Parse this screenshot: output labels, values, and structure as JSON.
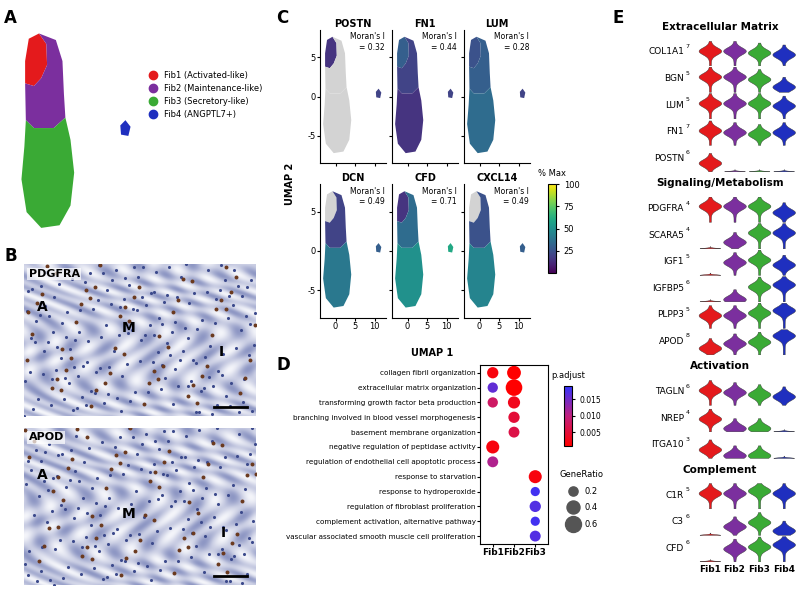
{
  "chart_data": [
    {
      "panel_label": "A",
      "type": "region",
      "tick_labels": false,
      "legend": "center left",
      "series": [
        {
          "name": "Fib1 (Activated-like)",
          "color": "#e41a1c",
          "x": [
            -2.7,
            -2.7,
            -2.2,
            -0.8,
            0.2,
            0.3,
            -0.5,
            -1.5
          ],
          "y": [
            3.8,
            5.5,
            7.2,
            7.6,
            6.8,
            5.2,
            4.2,
            3.6
          ]
        },
        {
          "name": "Fib2 (Maintenance-like)",
          "color": "#7b2f9e",
          "x": [
            -2.7,
            -1.5,
            -0.5,
            0.3,
            0.2,
            -0.8,
            1.5,
            2.4,
            2.6,
            2.8,
            1.2,
            -1.5,
            -2.6
          ],
          "y": [
            3.8,
            3.6,
            4.2,
            5.2,
            6.8,
            7.6,
            7.1,
            5.5,
            3.0,
            1.2,
            0.4,
            0.4,
            1.0
          ]
        },
        {
          "name": "Fib3 (Secretory-like)",
          "color": "#3aaa35",
          "x": [
            -2.6,
            -1.5,
            1.2,
            2.8,
            3.5,
            4.0,
            3.5,
            2.0,
            -0.5,
            -2.5,
            -3.2,
            -2.8
          ],
          "y": [
            1.0,
            0.4,
            0.4,
            1.2,
            -0.5,
            -3.0,
            -5.5,
            -7.0,
            -7.2,
            -6.0,
            -3.5,
            -1.0
          ]
        },
        {
          "name": "Fib4 (ANGPTL7+)",
          "color": "#1f2fbf",
          "x": [
            10.4,
            11.4,
            11.7,
            11.0,
            10.3
          ],
          "y": [
            -0.1,
            -0.2,
            0.5,
            1.0,
            0.6
          ]
        }
      ]
    },
    {
      "panel_label": "B",
      "type": "image",
      "panels": [
        {
          "title": "PDGFRA",
          "regions": [
            "A",
            "M",
            "I"
          ]
        },
        {
          "title": "APOD",
          "regions": [
            "A",
            "M",
            "I"
          ]
        }
      ]
    },
    {
      "panel_label": "C",
      "type": "feature",
      "xlabel": "UMAP 1",
      "ylabel": "UMAP 2",
      "xlim": [
        -4,
        13
      ],
      "ylim": [
        -8.5,
        8.5
      ],
      "xticks": [
        0,
        5,
        10
      ],
      "yticks": [
        -5,
        0,
        5
      ],
      "colorbar": {
        "label": "% Max",
        "range": [
          0,
          100
        ],
        "ticks": [
          25,
          50,
          75,
          100
        ]
      },
      "plots": [
        {
          "title": "POSTN",
          "annotation": "Moran's I\n= 0.32",
          "values": [
            15,
            null,
            null,
            20
          ]
        },
        {
          "title": "FN1",
          "annotation": "Moran's I\n= 0.44",
          "values": [
            30,
            20,
            15,
            20
          ]
        },
        {
          "title": "LUM",
          "annotation": "Moran's I\n= 0.28",
          "values": [
            25,
            30,
            35,
            20
          ]
        },
        {
          "title": "DCN",
          "annotation": "Moran's I\n= 0.49",
          "values": [
            null,
            20,
            40,
            30
          ]
        },
        {
          "title": "CFD",
          "annotation": "Moran's I\n= 0.71",
          "values": [
            15,
            35,
            50,
            60
          ]
        },
        {
          "title": "CXCL14",
          "annotation": "Moran's I\n= 0.49",
          "values": [
            null,
            25,
            45,
            30
          ]
        }
      ]
    },
    {
      "panel_label": "D",
      "type": "dot",
      "legend": "upper left",
      "categories": [
        "Fib1",
        "Fib2",
        "Fib3"
      ],
      "terms": [
        "collagen fibril organization",
        "extracellular matrix organization",
        "transforming growth factor beta production",
        "branching involved in blood vessel morphogenesis",
        "basement membrane organization",
        "negative regulation of peptidase activity",
        "regulation of endothelial cell apoptotic process",
        "response to starvation",
        "response to hydroperoxide",
        "regulation of fibroblast proliferation",
        "complement activation, alternative pathway",
        "vascular associated smooth muscle cell proliferation"
      ],
      "points": [
        {
          "term": "collagen fibril organization",
          "category": "Fib1",
          "p_adjust": 0.002,
          "gene_ratio": 0.3
        },
        {
          "term": "collagen fibril organization",
          "category": "Fib2",
          "p_adjust": 0.001,
          "gene_ratio": 0.45
        },
        {
          "term": "extracellular matrix organization",
          "category": "Fib1",
          "p_adjust": 0.016,
          "gene_ratio": 0.25
        },
        {
          "term": "extracellular matrix organization",
          "category": "Fib2",
          "p_adjust": 0.001,
          "gene_ratio": 0.65
        },
        {
          "term": "transforming growth factor beta production",
          "category": "Fib1",
          "p_adjust": 0.008,
          "gene_ratio": 0.25
        },
        {
          "term": "transforming growth factor beta production",
          "category": "Fib2",
          "p_adjust": 0.003,
          "gene_ratio": 0.35
        },
        {
          "term": "branching involved in blood vessel morphogenesis",
          "category": "Fib2",
          "p_adjust": 0.005,
          "gene_ratio": 0.3
        },
        {
          "term": "basement membrane organization",
          "category": "Fib2",
          "p_adjust": 0.006,
          "gene_ratio": 0.28
        },
        {
          "term": "negative regulation of peptidase activity",
          "category": "Fib1",
          "p_adjust": 0.002,
          "gene_ratio": 0.4
        },
        {
          "term": "regulation of endothelial cell apoptotic process",
          "category": "Fib1",
          "p_adjust": 0.011,
          "gene_ratio": 0.28
        },
        {
          "term": "response to starvation",
          "category": "Fib3",
          "p_adjust": 0.002,
          "gene_ratio": 0.4
        },
        {
          "term": "response to hydroperoxide",
          "category": "Fib3",
          "p_adjust": 0.018,
          "gene_ratio": 0.2
        },
        {
          "term": "regulation of fibroblast proliferation",
          "category": "Fib3",
          "p_adjust": 0.017,
          "gene_ratio": 0.3
        },
        {
          "term": "complement activation, alternative pathway",
          "category": "Fib3",
          "p_adjust": 0.018,
          "gene_ratio": 0.2
        },
        {
          "term": "vascular associated smooth muscle cell proliferation",
          "category": "Fib3",
          "p_adjust": 0.017,
          "gene_ratio": 0.28
        }
      ],
      "colorbar": {
        "label": "p.adjust",
        "range": [
          0.001,
          0.019
        ],
        "ticks": [
          {
            "value": 0.005,
            "label": "0.005"
          },
          {
            "value": 0.01,
            "label": "0.010"
          },
          {
            "value": 0.015,
            "label": "0.015"
          }
        ]
      },
      "size_legend": {
        "title": "GeneRatio",
        "values": [
          0.2,
          0.4,
          0.6
        ]
      }
    },
    {
      "panel_label": "E",
      "type": "violin",
      "categories": [
        "Fib1",
        "Fib2",
        "Fib3",
        "Fib4"
      ],
      "colors": [
        "#e41a1c",
        "#7b2f9e",
        "#3aaa35",
        "#1f2fbf"
      ],
      "sections": [
        {
          "title": "Extracellular Matrix",
          "genes": [
            {
              "name": "COL1A1",
              "ymax": 7,
              "values": [
                4,
                4,
                3.5,
                3
              ]
            },
            {
              "name": "BGN",
              "ymax": 5,
              "values": [
                3,
                3,
                2.5,
                1
              ]
            },
            {
              "name": "LUM",
              "ymax": 5,
              "values": [
                3,
                3,
                3,
                2.5
              ]
            },
            {
              "name": "FN1",
              "ymax": 7,
              "values": [
                4,
                3.5,
                3,
                3.5
              ]
            },
            {
              "name": "POSTN",
              "ymax": 6,
              "values": [
                2,
                0,
                0,
                0
              ]
            }
          ]
        },
        {
          "title": "Signaling/Metabolism",
          "genes": [
            {
              "name": "PDGFRA",
              "ymax": 4,
              "values": [
                2.5,
                2.5,
                2.5,
                1.5
              ]
            },
            {
              "name": "SCARA5",
              "ymax": 4,
              "values": [
                0,
                1,
                2.5,
                2.5
              ]
            },
            {
              "name": "IGF1",
              "ymax": 5,
              "values": [
                0,
                2.5,
                3,
                2
              ]
            },
            {
              "name": "IGFBP5",
              "ymax": 6,
              "values": [
                0,
                0.5,
                3.5,
                4
              ]
            },
            {
              "name": "PLPP3",
              "ymax": 5,
              "values": [
                2.5,
                2.5,
                3,
                3.5
              ]
            },
            {
              "name": "APOD",
              "ymax": 8,
              "values": [
                2,
                3.5,
                4,
                6
              ]
            }
          ]
        },
        {
          "title": "Activation",
          "genes": [
            {
              "name": "TAGLN",
              "ymax": 6,
              "values": [
                3.5,
                3,
                2.5,
                2
              ]
            },
            {
              "name": "NREP",
              "ymax": 4,
              "values": [
                2,
                0.5,
                0.5,
                0
              ]
            },
            {
              "name": "ITGA10",
              "ymax": 3,
              "values": [
                1,
                0.3,
                0.3,
                0
              ]
            }
          ]
        },
        {
          "title": "Complement",
          "genes": [
            {
              "name": "C1R",
              "ymax": 5,
              "values": [
                3,
                3,
                3.5,
                3
              ]
            },
            {
              "name": "C3",
              "ymax": 6,
              "values": [
                0,
                2,
                3,
                1
              ]
            },
            {
              "name": "CFD",
              "ymax": 6,
              "values": [
                0,
                3,
                3.5,
                4
              ]
            }
          ]
        }
      ]
    }
  ]
}
